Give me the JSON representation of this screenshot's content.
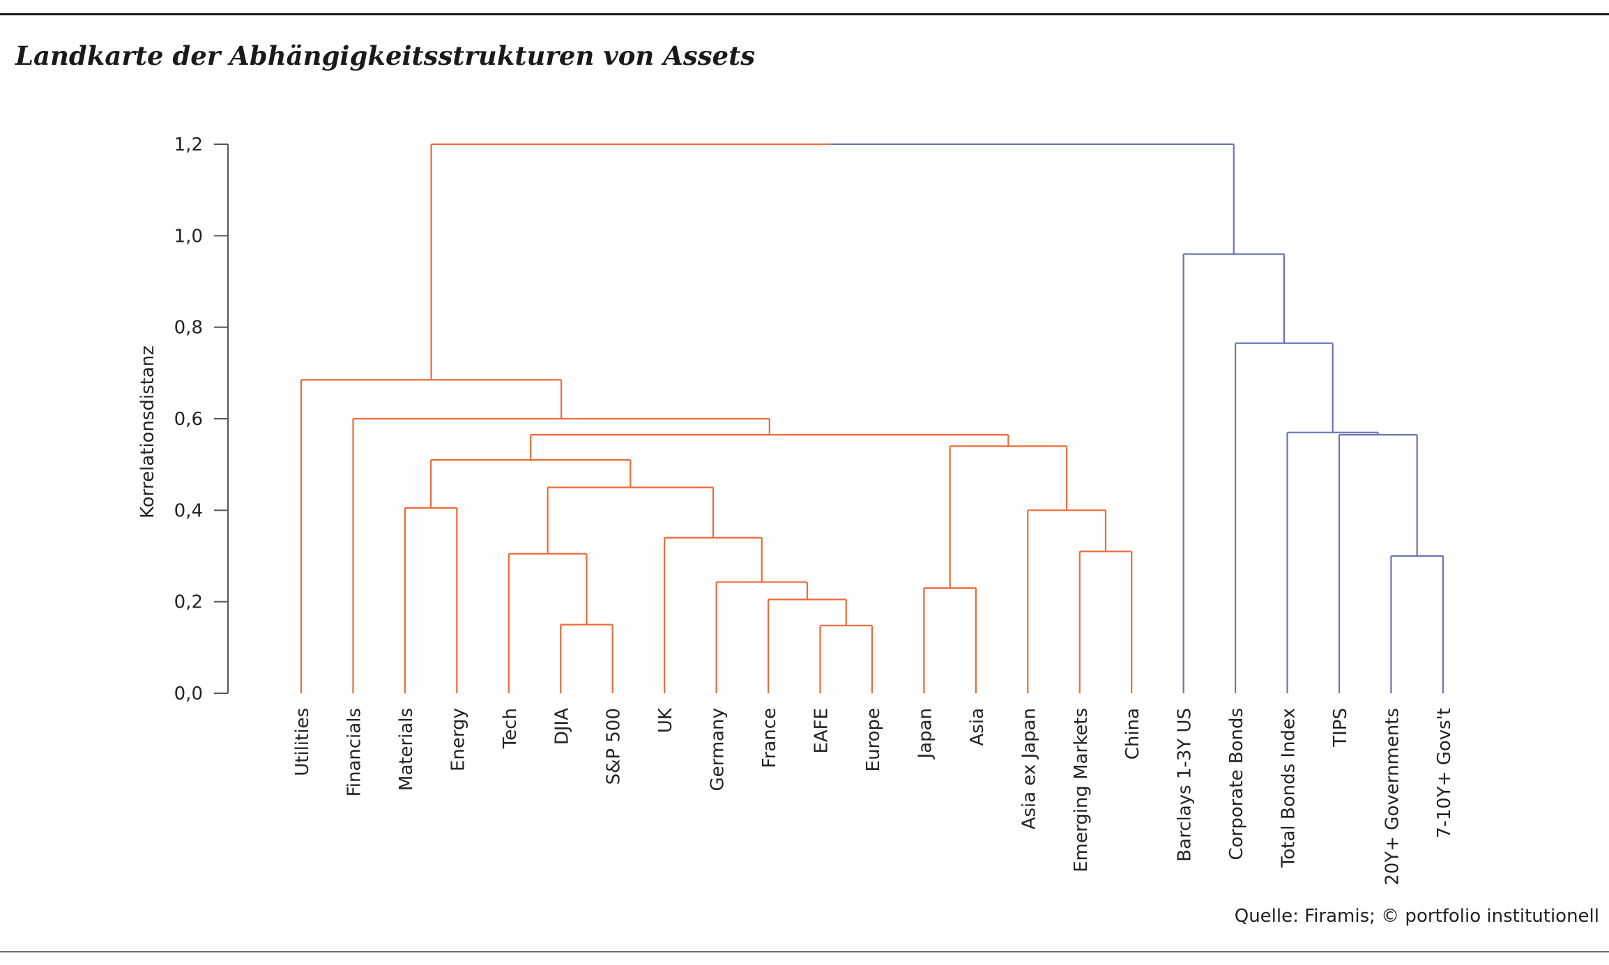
{
  "header": {
    "title": "Landkarte der Abhängigkeitsstrukturen von Assets"
  },
  "footer": {
    "source": "Quelle: Firamis; © portfolio institutionell"
  },
  "colors": {
    "equity_cluster": "#ee6a3a",
    "bond_cluster": "#6a74b4",
    "axis": "#555555",
    "text": "#222222"
  },
  "chart_data": {
    "type": "dendrogram",
    "ylabel": "Korrelationsdistanz",
    "ylim": [
      0,
      1.2
    ],
    "yticks": [
      0,
      0.2,
      0.4,
      0.6,
      0.8,
      1.0,
      1.2
    ],
    "ytick_labels": [
      "0,0",
      "0,2",
      "0,4",
      "0,6",
      "0,8",
      "1,0",
      "1,2"
    ],
    "leaves": [
      "Utilities",
      "Financials",
      "Materials",
      "Energy",
      "Tech",
      "DJIA",
      "S&P 500",
      "UK",
      "Germany",
      "France",
      "EAFE",
      "Europe",
      "Japan",
      "Asia",
      "Asia ex Japan",
      "Emerging Markets",
      "China",
      "Barclays 1-3Y US",
      "Corporate Bonds",
      "Total Bonds Index",
      "TIPS",
      "20Y+ Governments",
      "7-10Y+ Govs't"
    ],
    "leaf_clusters": [
      "equity",
      "equity",
      "equity",
      "equity",
      "equity",
      "equity",
      "equity",
      "equity",
      "equity",
      "equity",
      "equity",
      "equity",
      "equity",
      "equity",
      "equity",
      "equity",
      "equity",
      "bond",
      "bond",
      "bond",
      "bond",
      "bond",
      "bond"
    ],
    "merges": [
      {
        "left": "L5",
        "right": "L6",
        "height": 0.15,
        "cluster": "equity"
      },
      {
        "left": "L10",
        "right": "L11",
        "height": 0.148,
        "cluster": "equity"
      },
      {
        "left": "L9",
        "right": "M1",
        "height": 0.205,
        "cluster": "equity"
      },
      {
        "left": "L8",
        "right": "M2",
        "height": 0.243,
        "cluster": "equity"
      },
      {
        "left": "L7",
        "right": "M3",
        "height": 0.34,
        "cluster": "equity"
      },
      {
        "left": "L4",
        "right": "M0",
        "height": 0.305,
        "cluster": "equity"
      },
      {
        "left": "M5",
        "right": "M4",
        "height": 0.45,
        "cluster": "equity"
      },
      {
        "left": "L2",
        "right": "L3",
        "height": 0.405,
        "cluster": "equity"
      },
      {
        "left": "M7",
        "right": "M6",
        "height": 0.51,
        "cluster": "equity"
      },
      {
        "left": "L12",
        "right": "L13",
        "height": 0.23,
        "cluster": "equity"
      },
      {
        "left": "L15",
        "right": "L16",
        "height": 0.31,
        "cluster": "equity"
      },
      {
        "left": "L14",
        "right": "M10",
        "height": 0.4,
        "cluster": "equity"
      },
      {
        "left": "M9",
        "right": "M11",
        "height": 0.54,
        "cluster": "equity"
      },
      {
        "left": "M8",
        "right": "M12",
        "height": 0.565,
        "cluster": "equity"
      },
      {
        "left": "L1",
        "right": "M13",
        "height": 0.6,
        "cluster": "equity"
      },
      {
        "left": "L0",
        "right": "M14",
        "height": 0.685,
        "cluster": "equity"
      },
      {
        "left": "L21",
        "right": "L22",
        "height": 0.3,
        "cluster": "bond"
      },
      {
        "left": "L20",
        "right": "M16",
        "height": 0.565,
        "cluster": "bond"
      },
      {
        "left": "L19",
        "right": "M17",
        "height": 0.57,
        "cluster": "bond"
      },
      {
        "left": "L18",
        "right": "M18",
        "height": 0.765,
        "cluster": "bond"
      },
      {
        "left": "L17",
        "right": "M19",
        "height": 0.96,
        "cluster": "bond"
      },
      {
        "left": "M15",
        "right": "M20",
        "height": 1.2,
        "cluster": "mixed"
      }
    ]
  }
}
